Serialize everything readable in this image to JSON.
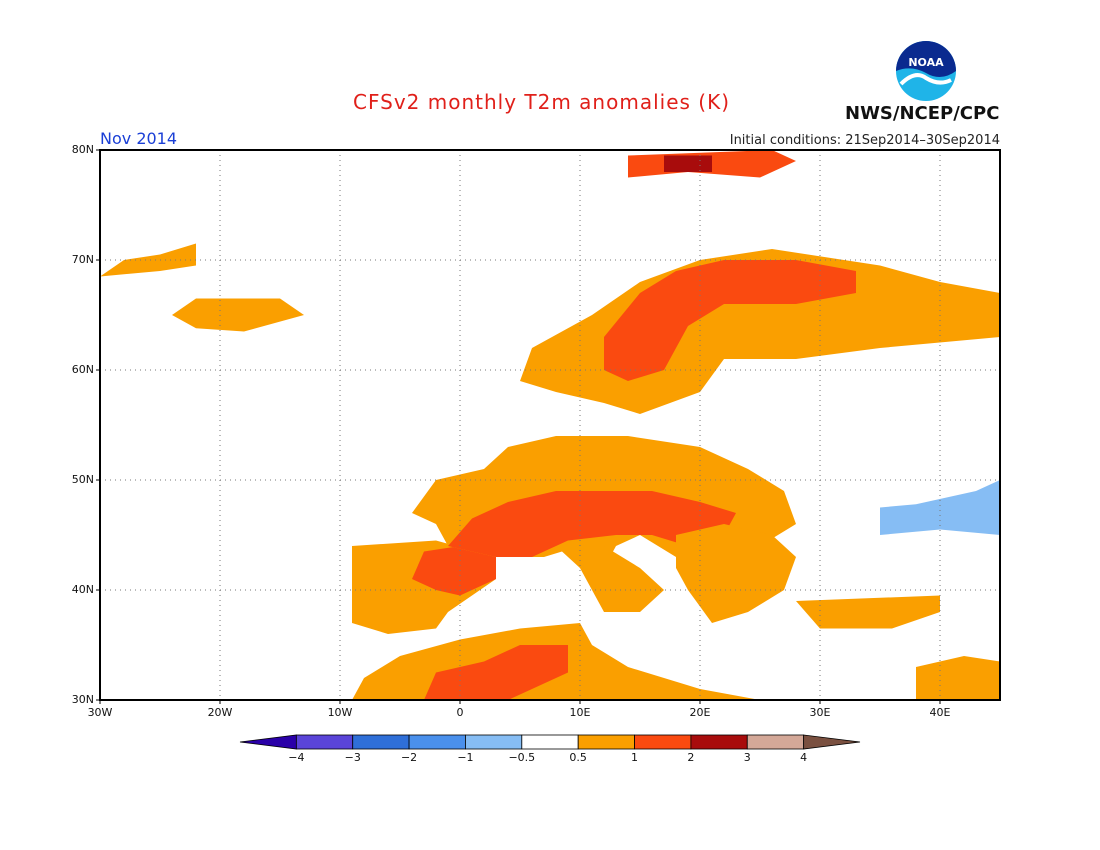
{
  "header": {
    "title": "CFSv2 monthly T2m anomalies (K)",
    "month": "Nov 2014",
    "initial_conditions": "Initial conditions: 21Sep2014–30Sep2014",
    "agency": "NWS/NCEP/CPC",
    "logo_text": "NOAA"
  },
  "axes": {
    "lat_labels": [
      "80N",
      "70N",
      "60N",
      "50N",
      "40N",
      "30N"
    ],
    "lon_labels": [
      "30W",
      "20W",
      "10W",
      "0",
      "10E",
      "20E",
      "30E",
      "40E"
    ]
  },
  "colorbar": {
    "labels": [
      "−4",
      "−3",
      "−2",
      "−1",
      "−0.5",
      "0.5",
      "1",
      "2",
      "3",
      "4"
    ],
    "colors": {
      "lt_-4": "#2a00a8",
      "-4_-3": "#5a44d8",
      "-3_-2": "#2f6fd8",
      "-2_-1": "#4a90ec",
      "-1_-0.5": "#86bdf4",
      "-0.5_0.5": "#ffffff",
      "0.5_1": "#fa9f00",
      "1_2": "#fa4a10",
      "2_3": "#a80c0c",
      "3_4": "#d4a898",
      "gt_4": "#7a5040"
    }
  },
  "map_data": {
    "domain": {
      "lon_min": -30,
      "lon_max": 45,
      "lat_min": 30,
      "lat_max": 80
    },
    "regions": [
      {
        "name": "Iberia",
        "category": "0.5_1",
        "poly": [
          [
            -9,
            37
          ],
          [
            -9,
            44
          ],
          [
            -2,
            44.5
          ],
          [
            3,
            43
          ],
          [
            3,
            41
          ],
          [
            -1,
            38
          ],
          [
            -2,
            36.5
          ],
          [
            -6,
            36
          ]
        ]
      },
      {
        "name": "Iberia NE",
        "category": "1_2",
        "poly": [
          [
            -4,
            41
          ],
          [
            -3,
            43.5
          ],
          [
            0,
            44
          ],
          [
            3,
            43
          ],
          [
            3,
            41
          ],
          [
            0,
            39.5
          ],
          [
            -2,
            40
          ]
        ]
      },
      {
        "name": "France-Central Europe",
        "category": "0.5_1",
        "poly": [
          [
            -4,
            47
          ],
          [
            -2,
            50
          ],
          [
            2,
            51
          ],
          [
            4,
            53
          ],
          [
            8,
            54
          ],
          [
            14,
            54
          ],
          [
            20,
            53
          ],
          [
            24,
            51
          ],
          [
            27,
            49
          ],
          [
            28,
            46
          ],
          [
            25,
            44
          ],
          [
            22,
            42
          ],
          [
            20,
            41
          ],
          [
            18,
            43
          ],
          [
            15,
            45
          ],
          [
            13,
            44
          ],
          [
            12,
            42
          ],
          [
            10,
            44
          ],
          [
            7,
            43
          ],
          [
            3,
            43
          ],
          [
            -1,
            44
          ],
          [
            -2,
            46
          ]
        ]
      },
      {
        "name": "S France-Alps",
        "category": "1_2",
        "poly": [
          [
            -1,
            44
          ],
          [
            1,
            46.5
          ],
          [
            4,
            48
          ],
          [
            8,
            49
          ],
          [
            12,
            49
          ],
          [
            16,
            49
          ],
          [
            20,
            48
          ],
          [
            23,
            47
          ],
          [
            22,
            45
          ],
          [
            19,
            44
          ],
          [
            16,
            45
          ],
          [
            13,
            45
          ],
          [
            9,
            44.5
          ],
          [
            6,
            43
          ],
          [
            3,
            43
          ]
        ]
      },
      {
        "name": "Italy",
        "category": "0.5_1",
        "poly": [
          [
            8,
            44
          ],
          [
            12,
            44
          ],
          [
            15,
            42
          ],
          [
            17,
            40
          ],
          [
            15,
            38
          ],
          [
            12,
            38
          ],
          [
            10,
            42
          ]
        ]
      },
      {
        "name": "Balkans",
        "category": "0.5_1",
        "poly": [
          [
            18,
            45
          ],
          [
            22,
            46
          ],
          [
            26,
            45
          ],
          [
            28,
            43
          ],
          [
            27,
            40
          ],
          [
            24,
            38
          ],
          [
            21,
            37
          ],
          [
            19,
            40
          ],
          [
            18,
            42
          ]
        ]
      },
      {
        "name": "Greece-Turkey W",
        "category": "0.5_1",
        "poly": [
          [
            28,
            39
          ],
          [
            40,
            39.5
          ],
          [
            40,
            38
          ],
          [
            36,
            36.5
          ],
          [
            30,
            36.5
          ]
        ]
      },
      {
        "name": "Scandinavia",
        "category": "0.5_1",
        "poly": [
          [
            5,
            59
          ],
          [
            6,
            62
          ],
          [
            11,
            65
          ],
          [
            15,
            68
          ],
          [
            20,
            70
          ],
          [
            26,
            71
          ],
          [
            32,
            70
          ],
          [
            35,
            69.5
          ],
          [
            40,
            68
          ],
          [
            45,
            67
          ],
          [
            45,
            63
          ],
          [
            35,
            62
          ],
          [
            28,
            61
          ],
          [
            22,
            61
          ],
          [
            20,
            58
          ],
          [
            15,
            56
          ],
          [
            12,
            57
          ],
          [
            8,
            58
          ]
        ]
      },
      {
        "name": "Scandinavia core",
        "category": "1_2",
        "poly": [
          [
            12,
            63
          ],
          [
            15,
            67
          ],
          [
            18,
            69
          ],
          [
            22,
            70
          ],
          [
            28,
            70
          ],
          [
            33,
            69
          ],
          [
            33,
            67
          ],
          [
            28,
            66
          ],
          [
            22,
            66
          ],
          [
            19,
            64
          ],
          [
            17,
            60
          ],
          [
            14,
            59
          ],
          [
            12,
            60
          ]
        ]
      },
      {
        "name": "Svalbard",
        "category": "1_2",
        "poly": [
          [
            14,
            77.5
          ],
          [
            14,
            79.5
          ],
          [
            26,
            80
          ],
          [
            28,
            79
          ],
          [
            25,
            77.5
          ],
          [
            19,
            78
          ]
        ]
      },
      {
        "name": "Svalbard core",
        "category": "2_3",
        "poly": [
          [
            17,
            78
          ],
          [
            17,
            79.5
          ],
          [
            21,
            79.5
          ],
          [
            21,
            78
          ]
        ]
      },
      {
        "name": "Iceland",
        "category": "0.5_1",
        "poly": [
          [
            -24,
            65
          ],
          [
            -22,
            66.5
          ],
          [
            -15,
            66.5
          ],
          [
            -13,
            65
          ],
          [
            -18,
            63.5
          ],
          [
            -22,
            63.8
          ]
        ]
      },
      {
        "name": "Greenland SE",
        "category": "0.5_1",
        "poly": [
          [
            -30,
            68.5
          ],
          [
            -28,
            70
          ],
          [
            -25,
            70.5
          ],
          [
            -22,
            71.5
          ],
          [
            -22,
            69.5
          ],
          [
            -25,
            69
          ]
        ]
      },
      {
        "name": "N Africa",
        "category": "0.5_1",
        "poly": [
          [
            -9,
            30
          ],
          [
            -8,
            32
          ],
          [
            -5,
            34
          ],
          [
            0,
            35.5
          ],
          [
            5,
            36.5
          ],
          [
            10,
            37
          ],
          [
            11,
            35
          ],
          [
            14,
            33
          ],
          [
            20,
            31
          ],
          [
            25,
            30
          ]
        ]
      },
      {
        "name": "N Africa core",
        "category": "1_2",
        "poly": [
          [
            -3,
            30
          ],
          [
            -2,
            32.5
          ],
          [
            2,
            33.5
          ],
          [
            5,
            35
          ],
          [
            9,
            35
          ],
          [
            9,
            32.5
          ],
          [
            6,
            31
          ],
          [
            4,
            30
          ]
        ]
      },
      {
        "name": "Middle East",
        "category": "0.5_1",
        "poly": [
          [
            38,
            30
          ],
          [
            38,
            33
          ],
          [
            42,
            34
          ],
          [
            45,
            33.5
          ],
          [
            45,
            30
          ]
        ]
      },
      {
        "name": "Ukraine-Russia",
        "category": "-1_-0.5",
        "poly": [
          [
            35,
            45
          ],
          [
            35,
            47.5
          ],
          [
            38,
            47.8
          ],
          [
            43,
            49
          ],
          [
            45,
            50
          ],
          [
            45,
            45
          ],
          [
            40,
            45.5
          ]
        ]
      }
    ]
  }
}
